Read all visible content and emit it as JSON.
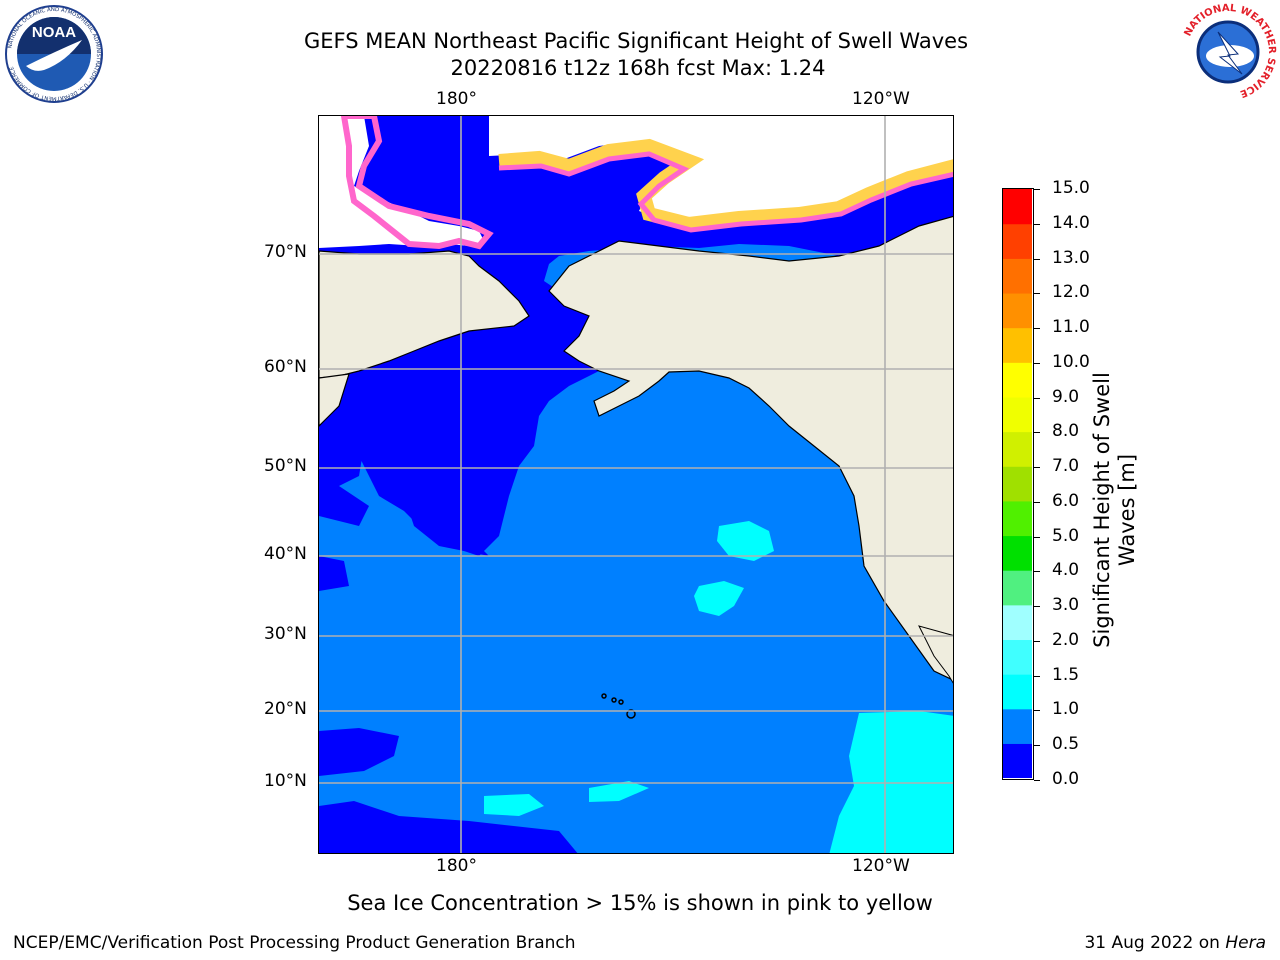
{
  "title": {
    "line1": "GEFS MEAN Northeast Pacific Significant Height of Swell Waves",
    "line2": "20220816 t12z 168h fcst   Max: 1.24"
  },
  "logos": {
    "left": {
      "name": "noaa-logo",
      "text": "NOAA",
      "ring_text": "NATIONAL OCEANIC AND ATMOSPHERIC ADMINISTRATION · U.S. DEPARTMENT OF COMMERCE"
    },
    "right": {
      "name": "nws-logo",
      "ring_text": "NATIONAL WEATHER SERVICE"
    }
  },
  "map": {
    "lon_labels_top": [
      "180°",
      "120°W"
    ],
    "lon_labels_bottom": [
      "180°",
      "120°W"
    ],
    "lat_labels": [
      "70°N",
      "60°N",
      "50°N",
      "40°N",
      "30°N",
      "20°N",
      "10°N"
    ],
    "colors": {
      "land": "#efedde",
      "ice_white": "#ffffff",
      "ice_pink": "#ff66cc",
      "ice_yellow": "#ffd24d",
      "ocean_low": "#0000ff",
      "ocean_mid": "#0080ff",
      "ocean_high": "#00ffff"
    }
  },
  "colorbar": {
    "title_line1": "Significant Height of Swell",
    "title_line2": "Waves [m]",
    "levels": [
      "0.0",
      "0.5",
      "1.0",
      "1.5",
      "2.0",
      "3.0",
      "4.0",
      "5.0",
      "6.0",
      "7.0",
      "8.0",
      "9.0",
      "10.0",
      "11.0",
      "12.0",
      "13.0",
      "14.0",
      "15.0"
    ],
    "colors": [
      "#0000ff",
      "#0080ff",
      "#00ffff",
      "#40ffff",
      "#a0ffff",
      "#50f080",
      "#00e000",
      "#50f000",
      "#a0e000",
      "#d0f000",
      "#f0ff00",
      "#ffff00",
      "#ffc000",
      "#ff9000",
      "#ff7000",
      "#ff4000",
      "#ff0000"
    ]
  },
  "note": "Sea Ice Concentration > 15% is shown in pink to yellow",
  "footer": {
    "left": "NCEP/EMC/Verification Post Processing Product Generation Branch",
    "right_prefix": "31 Aug 2022 on ",
    "right_italic": "Hera"
  }
}
